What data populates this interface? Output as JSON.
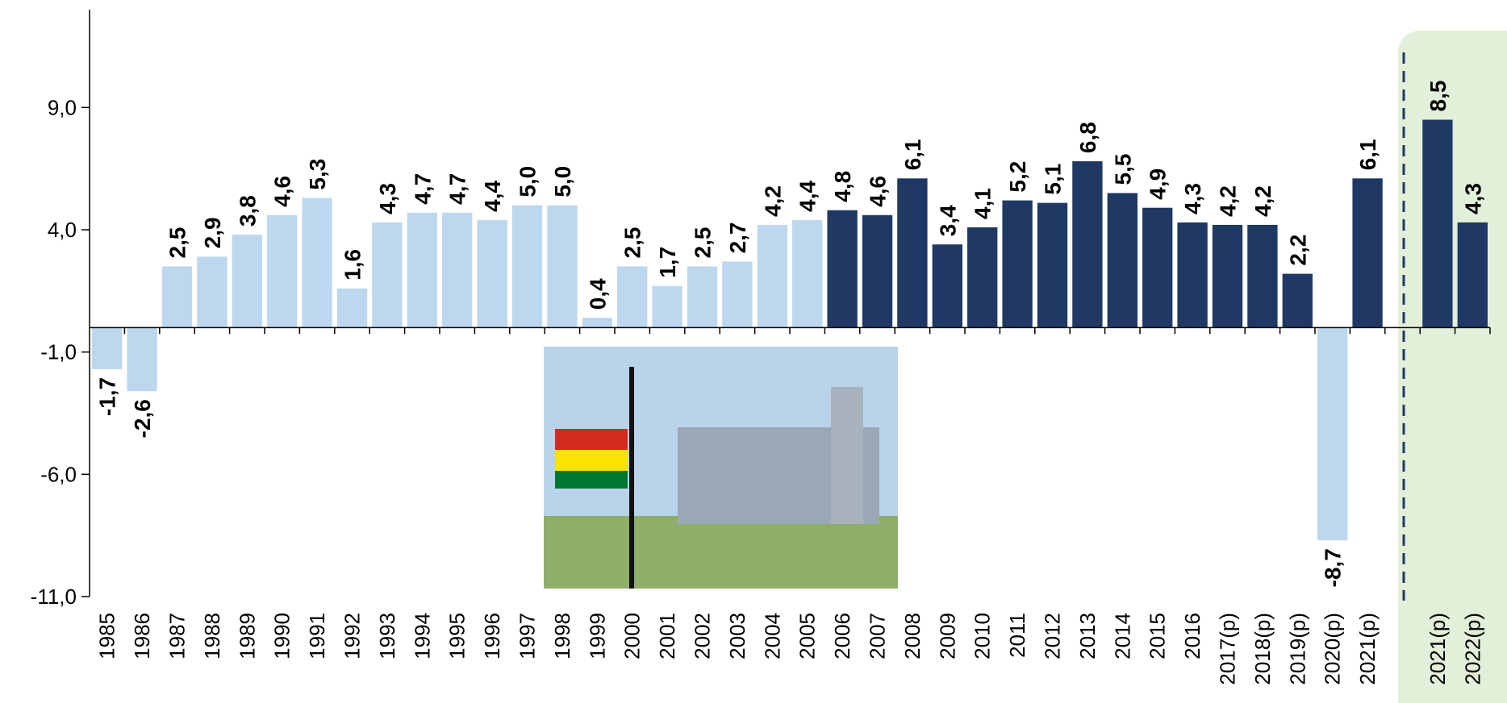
{
  "chart_data": {
    "type": "bar",
    "categories": [
      "1985",
      "1986",
      "1987",
      "1988",
      "1989",
      "1990",
      "1991",
      "1992",
      "1993",
      "1994",
      "1995",
      "1996",
      "1997",
      "1998",
      "1999",
      "2000",
      "2001",
      "2002",
      "2003",
      "2004",
      "2005",
      "2006",
      "2007",
      "2008",
      "2009",
      "2010",
      "2011",
      "2012",
      "2013",
      "2014",
      "2015",
      "2016",
      "2017(p)",
      "2018(p)",
      "2019(p)",
      "2020(p)",
      "2021(p)",
      null,
      "2021(p)",
      "2022(p)"
    ],
    "values": [
      -1.7,
      -2.6,
      2.5,
      2.9,
      3.8,
      4.6,
      5.3,
      1.6,
      4.3,
      4.7,
      4.7,
      4.4,
      5.0,
      5.0,
      0.4,
      2.5,
      1.7,
      2.5,
      2.7,
      4.2,
      4.4,
      4.8,
      4.6,
      6.1,
      3.4,
      4.1,
      5.2,
      5.1,
      6.8,
      5.5,
      4.9,
      4.3,
      4.2,
      4.2,
      2.2,
      -8.7,
      6.1,
      null,
      8.5,
      4.3
    ],
    "value_labels": [
      "-1,7",
      "-2,6",
      "2,5",
      "2,9",
      "3,8",
      "4,6",
      "5,3",
      "1,6",
      "4,3",
      "4,7",
      "4,7",
      "4,4",
      "5,0",
      "5,0",
      "0,4",
      "2,5",
      "1,7",
      "2,5",
      "2,7",
      "4,2",
      "4,4",
      "4,8",
      "4,6",
      "6,1",
      "3,4",
      "4,1",
      "5,2",
      "5,1",
      "6,8",
      "5,5",
      "4,9",
      "4,3",
      "4,2",
      "4,2",
      "2,2",
      "-8,7",
      "6,1",
      null,
      "8,5",
      "4,3"
    ],
    "colors": [
      "#bdd7ee",
      "#bdd7ee",
      "#bdd7ee",
      "#bdd7ee",
      "#bdd7ee",
      "#bdd7ee",
      "#bdd7ee",
      "#bdd7ee",
      "#bdd7ee",
      "#bdd7ee",
      "#bdd7ee",
      "#bdd7ee",
      "#bdd7ee",
      "#bdd7ee",
      "#bdd7ee",
      "#bdd7ee",
      "#bdd7ee",
      "#bdd7ee",
      "#bdd7ee",
      "#bdd7ee",
      "#bdd7ee",
      "#1f3864",
      "#1f3864",
      "#1f3864",
      "#1f3864",
      "#1f3864",
      "#1f3864",
      "#1f3864",
      "#1f3864",
      "#1f3864",
      "#1f3864",
      "#1f3864",
      "#1f3864",
      "#1f3864",
      "#1f3864",
      "#bdd7ee",
      "#1f3864",
      null,
      "#1f3864",
      "#1f3864"
    ],
    "ylim": [
      -11,
      13
    ],
    "yticks": [
      {
        "value": -11,
        "label": "-11,0"
      },
      {
        "value": -6,
        "label": "-6,0"
      },
      {
        "value": -1,
        "label": "-1,0"
      },
      {
        "value": 4,
        "label": "4,0"
      },
      {
        "value": 9,
        "label": "9,0"
      }
    ]
  }
}
